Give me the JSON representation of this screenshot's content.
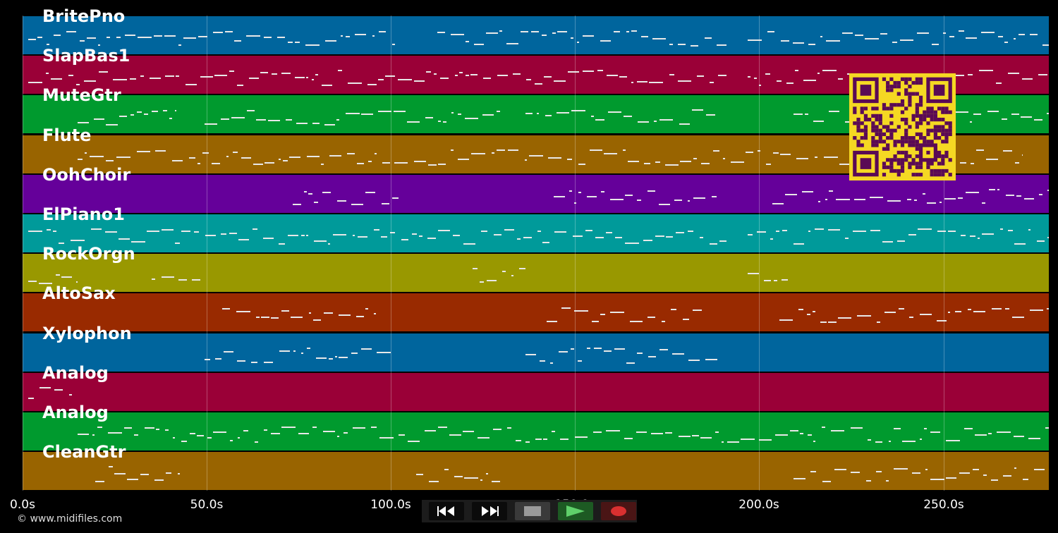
{
  "tracks": [
    {
      "name": "BritePno",
      "color": "#00659d"
    },
    {
      "name": "SlapBas1",
      "color": "#9a0037"
    },
    {
      "name": "MuteGtr",
      "color": "#009a2e"
    },
    {
      "name": "Flute",
      "color": "#996400"
    },
    {
      "name": "OohChoir",
      "color": "#65009a"
    },
    {
      "name": "ElPiano1",
      "color": "#009a9a"
    },
    {
      "name": "RockOrgn",
      "color": "#999800"
    },
    {
      "name": "AltoSax",
      "color": "#992a00"
    },
    {
      "name": "Xylophon",
      "color": "#00659d"
    },
    {
      "name": "Analog",
      "color": "#9a0037"
    },
    {
      "name": "Analog",
      "color": "#009a2e"
    },
    {
      "name": "CleanGtr",
      "color": "#996400"
    }
  ],
  "timeline": {
    "ticks": [
      "0.0s",
      "50.0s",
      "100.0s",
      "150.0s",
      "200.0s",
      "250.0s"
    ]
  },
  "footer": {
    "copyright": "© www.midifiles.com"
  },
  "transport": {
    "buttons": [
      {
        "name": "rewind-button",
        "icon": "rewind-icon"
      },
      {
        "name": "fast-forward-button",
        "icon": "fast-forward-icon"
      },
      {
        "name": "stop-button",
        "icon": "stop-icon"
      },
      {
        "name": "play-button",
        "icon": "play-icon"
      },
      {
        "name": "record-button",
        "icon": "record-icon"
      }
    ]
  },
  "qr_code": {
    "icon": "qr-code-icon",
    "color": "#f5d823"
  }
}
